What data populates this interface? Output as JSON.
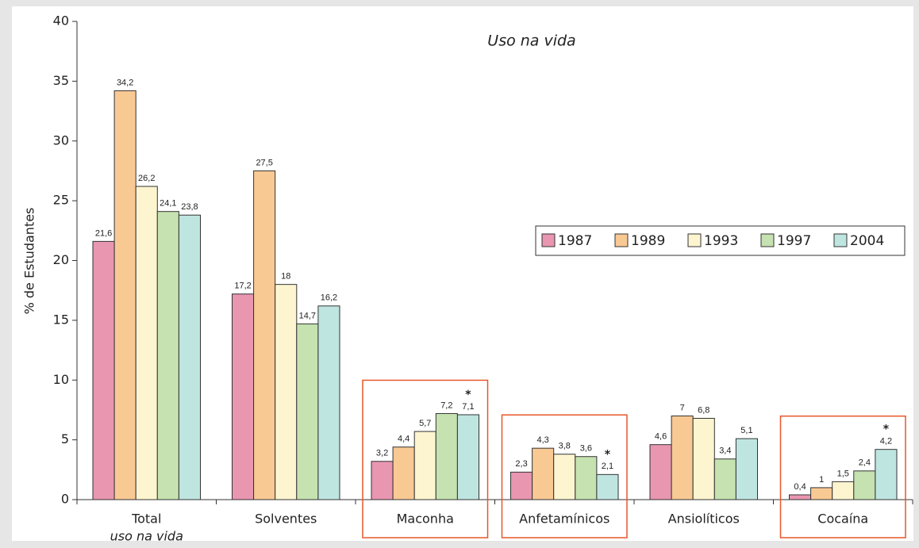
{
  "chart_data": {
    "type": "bar",
    "title": "Uso na vida",
    "y_label": "% de Estudantes",
    "categories": [
      [
        "Total",
        "uso na vida"
      ],
      "Solventes",
      "Maconha",
      "Anfetamínicos",
      "Ansiolíticos",
      "Cocaína"
    ],
    "series": [
      {
        "name": "1987",
        "color": "#e996b1",
        "values": [
          21.6,
          17.2,
          3.2,
          2.3,
          4.6,
          0.4
        ],
        "value_labels": [
          "21,6",
          "17,2",
          "3,2",
          "2,3",
          "4,6",
          "0,4"
        ]
      },
      {
        "name": "1989",
        "color": "#f9c994",
        "values": [
          34.2,
          27.5,
          4.4,
          4.3,
          7,
          1
        ],
        "value_labels": [
          "34,2",
          "27,5",
          "4,4",
          "4,3",
          "7",
          "1"
        ]
      },
      {
        "name": "1993",
        "color": "#fdf5d0",
        "values": [
          26.2,
          18,
          5.7,
          3.8,
          6.8,
          1.5
        ],
        "value_labels": [
          "26,2",
          "18",
          "5,7",
          "3,8",
          "6,8",
          "1,5"
        ]
      },
      {
        "name": "1997",
        "color": "#c5e2b0",
        "values": [
          24.1,
          14.7,
          7.2,
          3.6,
          3.4,
          2.4
        ],
        "value_labels": [
          "24,1",
          "14,7",
          "7,2",
          "3,6",
          "3,4",
          "2,4"
        ]
      },
      {
        "name": "2004",
        "color": "#bfe5e0",
        "values": [
          23.8,
          16.2,
          7.1,
          2.1,
          5.1,
          4.2
        ],
        "value_labels": [
          "23,8",
          "16,2",
          "7,1",
          "2,1",
          "5,1",
          "4,2"
        ]
      }
    ],
    "ylim": [
      0,
      40
    ],
    "yticks": [
      0,
      5,
      10,
      15,
      20,
      25,
      30,
      35,
      40
    ],
    "annotations": [
      {
        "text": "*",
        "category": "Maconha",
        "series": "2004"
      },
      {
        "text": "*",
        "category": "Anfetamínicos",
        "series": "2004"
      },
      {
        "text": "*",
        "category": "Cocaína",
        "series": "2004"
      }
    ],
    "highlight": [
      "Maconha",
      "Anfetamínicos",
      "Cocaína"
    ],
    "highlight_color": "#e8572a",
    "legend": "right"
  }
}
